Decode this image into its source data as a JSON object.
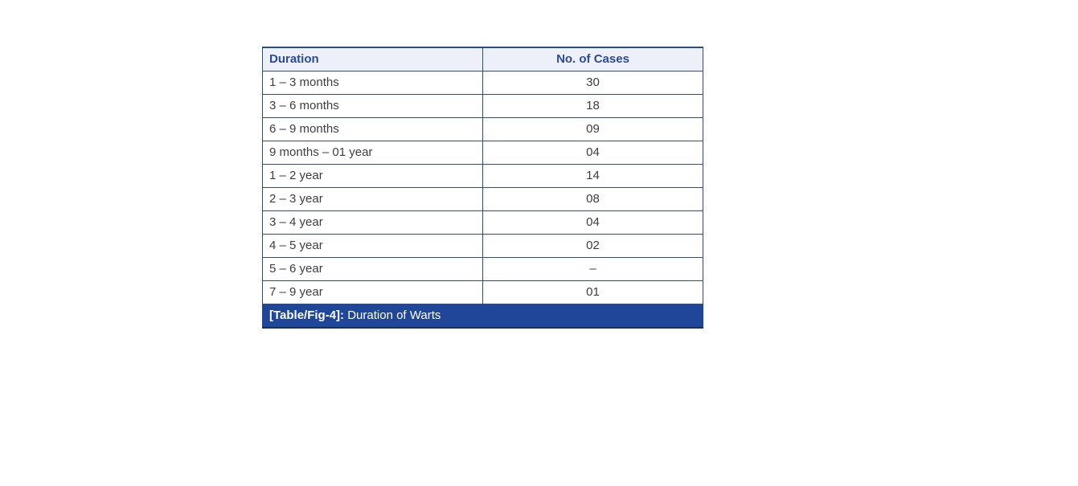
{
  "table": {
    "header": {
      "duration": "Duration",
      "cases": "No. of Cases"
    },
    "rows": [
      {
        "duration": "1 – 3 months",
        "cases": "30"
      },
      {
        "duration": "3 – 6 months",
        "cases": "18"
      },
      {
        "duration": "6 – 9 months",
        "cases": "09"
      },
      {
        "duration": "9 months – 01 year",
        "cases": "04"
      },
      {
        "duration": "1 – 2 year",
        "cases": "14"
      },
      {
        "duration": "2 – 3 year",
        "cases": "08"
      },
      {
        "duration": "3 – 4 year",
        "cases": "04"
      },
      {
        "duration": "4 – 5 year",
        "cases": "02"
      },
      {
        "duration": "5 – 6 year",
        "cases": "–"
      },
      {
        "duration": "7 – 9 year",
        "cases": "01"
      }
    ],
    "caption": {
      "label": "[Table/Fig-4]:",
      "text": " Duration of Warts"
    }
  },
  "colors": {
    "border": "#2e4d7b",
    "header_background": "#edf0f8",
    "header_text": "#2b4a9b",
    "caption_background": "#1f4698",
    "caption_text": "#ffffff",
    "body_text": "#3d3d3d"
  },
  "chart_data": {
    "type": "table",
    "title": "[Table/Fig-4]: Duration of Warts",
    "columns": [
      "Duration",
      "No. of Cases"
    ],
    "categories": [
      "1 – 3 months",
      "3 – 6 months",
      "6 – 9 months",
      "9 months – 01 year",
      "1 – 2 year",
      "2 – 3 year",
      "3 – 4 year",
      "4 – 5 year",
      "5 – 6 year",
      "7 – 9 year"
    ],
    "values": [
      30,
      18,
      9,
      4,
      14,
      8,
      4,
      2,
      0,
      1
    ]
  }
}
